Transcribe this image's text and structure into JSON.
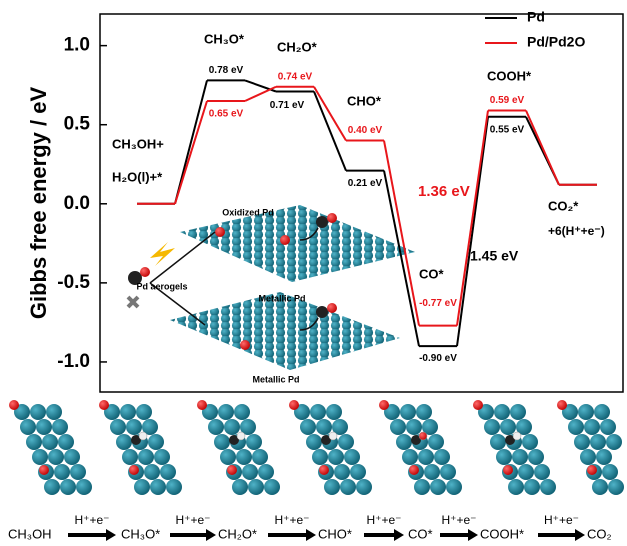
{
  "chart_data": {
    "type": "energy_profile",
    "y_label": "Gibbs free energy / eV",
    "ylim": [
      -1.19,
      1.2
    ],
    "yticks": [
      {
        "value": -1,
        "label": "-1.0"
      },
      -0.5,
      {
        "value": 0,
        "label": "0.0"
      },
      0.5,
      {
        "value": 1,
        "label": "1.0"
      }
    ],
    "legend": "upper right",
    "series": [
      {
        "name": "Pd",
        "color": "#000000",
        "values": [
          0,
          0.78,
          0.71,
          0.21,
          -0.9,
          0.55,
          0.12
        ],
        "value_labels": [
          null,
          "0.78 eV",
          "0.71 eV",
          "0.21 eV",
          "-0.90 eV",
          "0.55 eV",
          null
        ]
      },
      {
        "name": "Pd/Pd2O",
        "color": "#e8161b",
        "values": [
          0,
          0.65,
          0.74,
          0.4,
          -0.77,
          0.59,
          0.12
        ],
        "value_labels": [
          null,
          "0.65 eV",
          "0.74 eV",
          "0.40 eV",
          "-0.77 eV",
          "0.59 eV",
          null
        ]
      }
    ],
    "annotations": [
      {
        "text": "CH₃OH+",
        "color": "#000000"
      },
      {
        "text": "H₂O(l)+*",
        "color": "#000000"
      },
      {
        "text": "CH₃O*",
        "color": "#000000"
      },
      {
        "text": "CH₂O*",
        "color": "#000000"
      },
      {
        "text": "CHO*",
        "color": "#000000"
      },
      {
        "text": "CO*",
        "color": "#000000"
      },
      {
        "text": "COOH*",
        "color": "#000000"
      },
      {
        "text": "CO₂*",
        "color": "#000000"
      },
      {
        "text": "+6(H⁺+e⁻)",
        "color": "#000000"
      },
      {
        "text": "1.36 eV",
        "color": "#e8161b"
      },
      {
        "text": "1.45 eV",
        "color": "#000000"
      }
    ]
  },
  "inset": {
    "labels": [
      "Oxidized Pd",
      "Pd aerogels",
      "Metallic Pd",
      "Metallic Pd"
    ]
  },
  "scheme": {
    "species": [
      "CH₃OH",
      "CH₃O*",
      "CH₂O*",
      "CHO*",
      "CO*",
      "COOH*",
      "CO₂"
    ],
    "arrow_labels": [
      "H⁺+e⁻",
      "H⁺+e⁻",
      "H⁺+e⁻",
      "H⁺+e⁻",
      "H⁺+e⁻",
      "H⁺+e⁻"
    ]
  }
}
